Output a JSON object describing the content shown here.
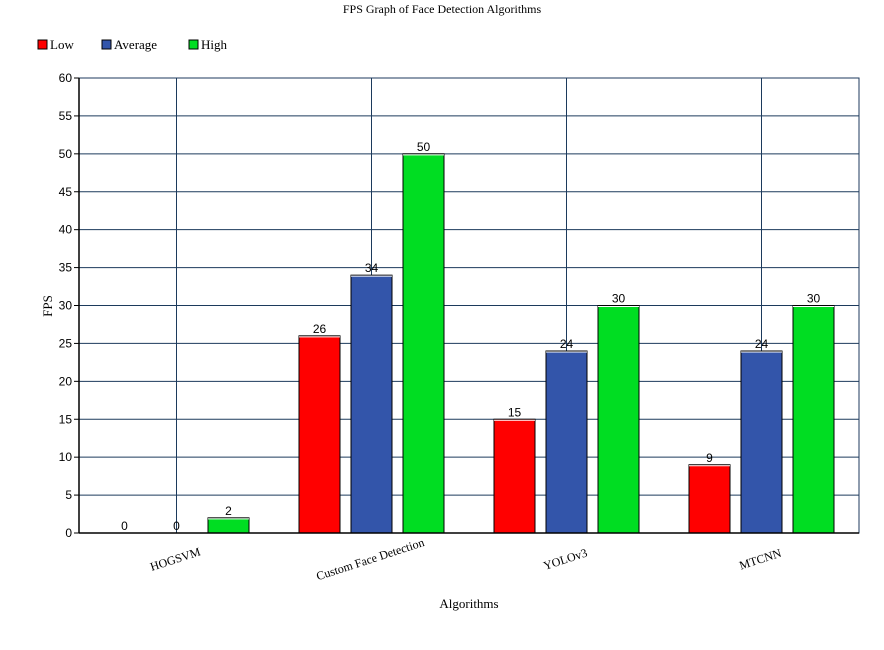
{
  "chart_data": {
    "type": "bar",
    "title": "FPS Graph of Face Detection Algorithms",
    "xlabel": "Algorithms",
    "ylabel": "FPS",
    "categories": [
      "HOGSVM",
      "Custom Face Detection",
      "YOLOv3",
      "MTCNN"
    ],
    "series": [
      {
        "name": "Low",
        "color": "#ff0000",
        "values": [
          0,
          26,
          15,
          9
        ]
      },
      {
        "name": "Average",
        "color": "#3355aa",
        "values": [
          0,
          34,
          24,
          24
        ]
      },
      {
        "name": "High",
        "color": "#00dd22",
        "values": [
          2,
          50,
          30,
          30
        ]
      }
    ],
    "ylim": [
      0,
      60
    ],
    "ytick_step": 5,
    "grid": true,
    "grid_color": "#1c3a5c",
    "legend_position": "top-left"
  }
}
